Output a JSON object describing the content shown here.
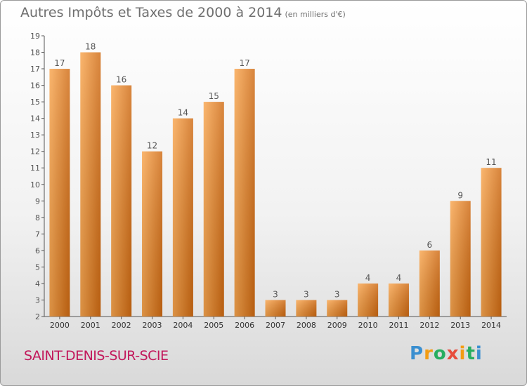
{
  "header": {
    "title": "Autres Impôts et Taxes de 2000 à 2014",
    "unit": "(en milliers d'€)"
  },
  "footer": {
    "commune": "SAINT-DENIS-SUR-SCIE",
    "logo": "Proxiti"
  },
  "colors": {
    "bar_light": "#f9a64f",
    "bar_dark": "#cf6a12",
    "axis": "#555555",
    "grid": "#cfcfcf",
    "text": "#555555"
  },
  "chart_data": {
    "type": "bar",
    "title": "Autres Impôts et Taxes de 2000 à 2014",
    "subtitle": "(en milliers d'€)",
    "categories": [
      "2000",
      "2001",
      "2002",
      "2003",
      "2004",
      "2005",
      "2006",
      "2007",
      "2008",
      "2009",
      "2010",
      "2011",
      "2012",
      "2013",
      "2014"
    ],
    "values": [
      17,
      18,
      16,
      12,
      14,
      15,
      17,
      3,
      3,
      3,
      4,
      4,
      6,
      9,
      11
    ],
    "ylim": [
      2,
      19
    ],
    "yticks": [
      2,
      3,
      4,
      5,
      6,
      7,
      8,
      9,
      10,
      11,
      12,
      13,
      14,
      15,
      16,
      17,
      18,
      19
    ],
    "grid": false,
    "legend": "none"
  }
}
